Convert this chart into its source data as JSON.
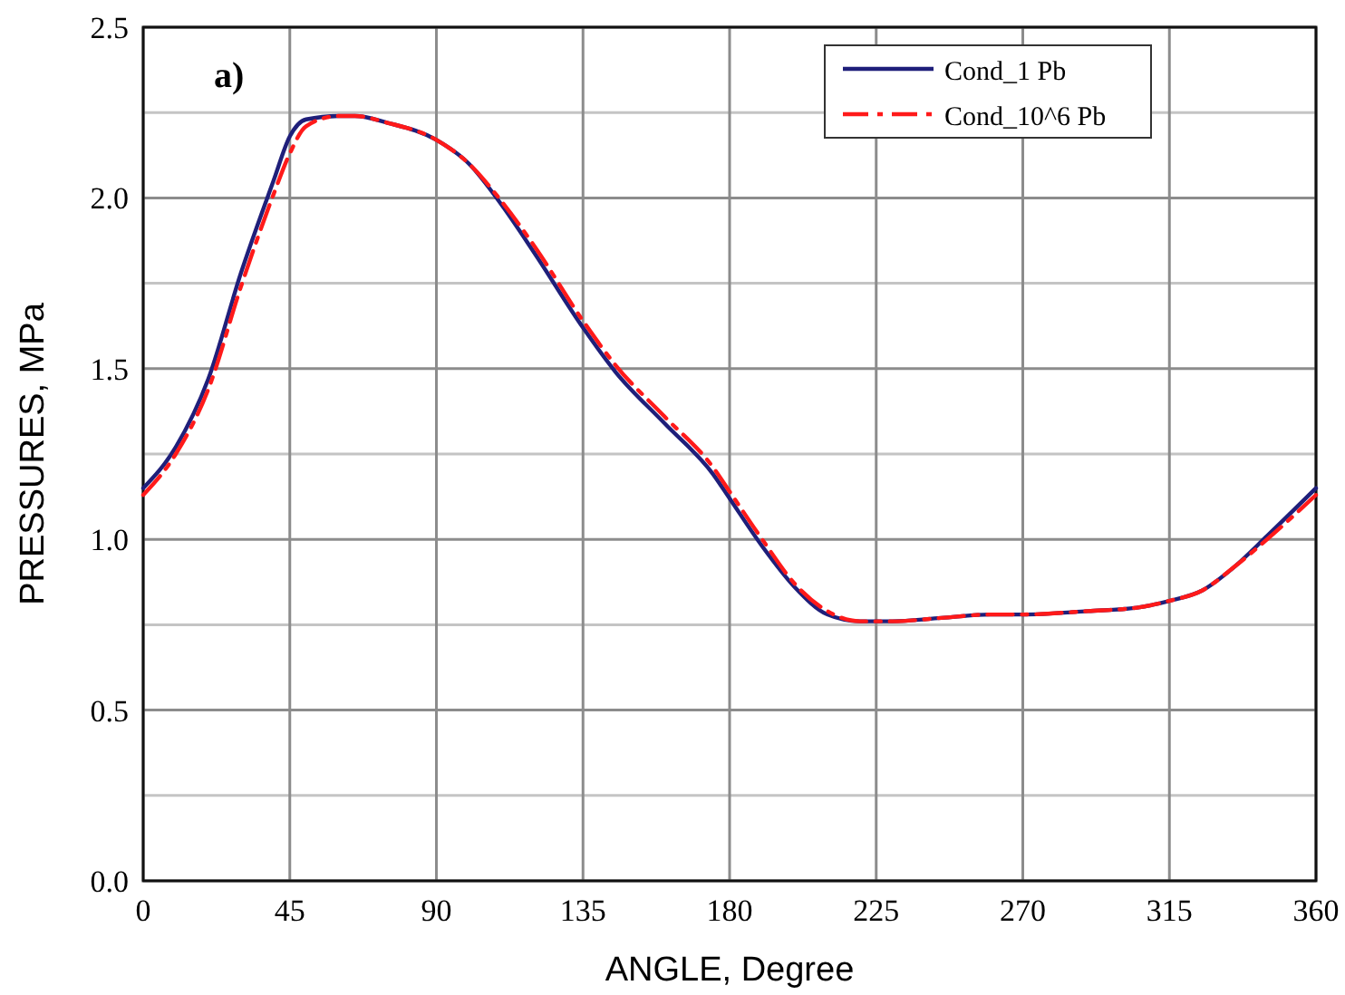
{
  "chart_data": {
    "type": "line",
    "xlabel": "ANGLE, Degree",
    "ylabel": "PRESSURES, MPa",
    "annotations": [
      "a)"
    ],
    "xlim": [
      0,
      360
    ],
    "xticks": [
      0,
      45,
      90,
      135,
      180,
      225,
      270,
      315,
      360
    ],
    "ylim": [
      0,
      2.5
    ],
    "yticks": [
      {
        "value": 0,
        "label": "0.0"
      },
      {
        "value": 0.25,
        "label": null
      },
      0.5,
      {
        "value": 0.75,
        "label": null
      },
      {
        "value": 1,
        "label": "1.0"
      },
      {
        "value": 1.25,
        "label": null
      },
      1.5,
      {
        "value": 1.75,
        "label": null
      },
      {
        "value": 2,
        "label": "2.0"
      },
      {
        "value": 2.25,
        "label": null
      },
      2.5
    ],
    "grid": true,
    "legend": "top right",
    "marker": "none",
    "series": [
      {
        "name": "Cond_1 Pb",
        "color": "#1f1f7a",
        "line_style": "solid",
        "x": [
          0,
          10,
          20,
          30,
          40,
          45,
          50,
          60,
          65,
          75,
          90,
          100,
          110,
          120,
          135,
          145,
          160,
          175,
          180,
          190,
          200,
          210,
          220,
          230,
          245,
          260,
          270,
          290,
          305,
          315,
          325,
          335,
          345,
          360
        ],
        "values": [
          1.15,
          1.27,
          1.47,
          1.78,
          2.05,
          2.18,
          2.23,
          2.24,
          2.24,
          2.22,
          2.17,
          2.1,
          1.98,
          1.84,
          1.62,
          1.49,
          1.34,
          1.19,
          1.12,
          0.98,
          0.86,
          0.78,
          0.76,
          0.76,
          0.77,
          0.78,
          0.78,
          0.79,
          0.8,
          0.82,
          0.85,
          0.92,
          1.01,
          1.15
        ]
      },
      {
        "name": "Cond_10^6 Pb",
        "color": "#ff1a1a",
        "line_style": "dashed",
        "x": [
          0,
          10,
          20,
          30,
          40,
          45,
          50,
          60,
          65,
          75,
          90,
          100,
          110,
          120,
          135,
          145,
          160,
          175,
          180,
          190,
          200,
          210,
          220,
          230,
          245,
          260,
          270,
          290,
          305,
          315,
          325,
          335,
          345,
          360
        ],
        "values": [
          1.13,
          1.25,
          1.44,
          1.74,
          2.01,
          2.13,
          2.21,
          2.24,
          2.24,
          2.22,
          2.17,
          2.1,
          1.99,
          1.86,
          1.64,
          1.51,
          1.36,
          1.21,
          1.14,
          1.0,
          0.87,
          0.79,
          0.76,
          0.76,
          0.77,
          0.78,
          0.78,
          0.79,
          0.8,
          0.82,
          0.85,
          0.92,
          1.0,
          1.13
        ]
      }
    ]
  }
}
